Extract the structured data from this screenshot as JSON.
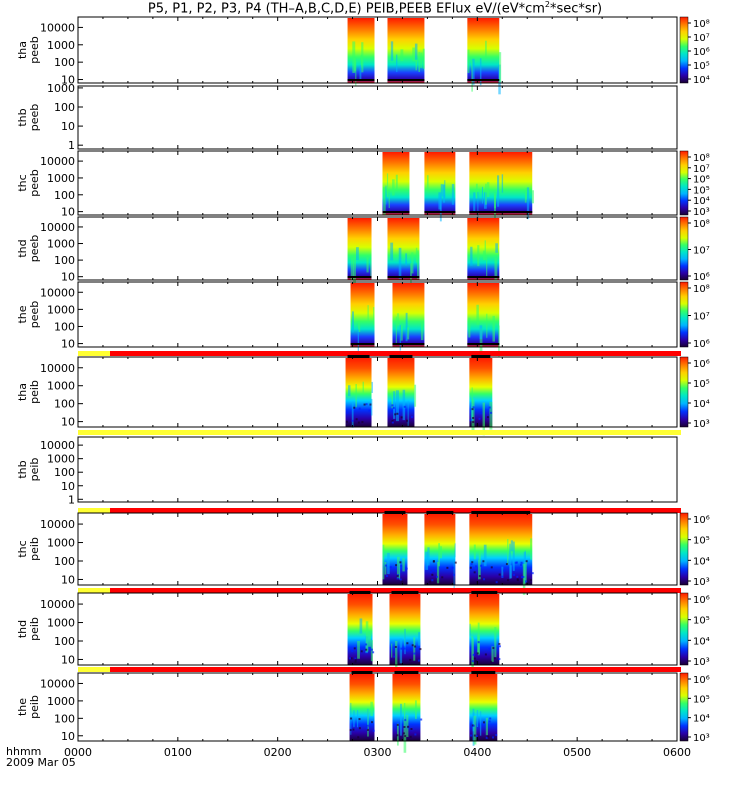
{
  "title": {
    "prefix": "P5, P1, P2, P3, P4 (TH–A,B,C,D,E) PEIB,PEEB EFlux eV/(eV*cm",
    "sup": "2",
    "suffix": "*sec*sr)"
  },
  "footer": {
    "hhmm": "hhmm",
    "date": "2009 Mar 05"
  },
  "chart_data": {
    "type": "heatmap",
    "x": {
      "unit": "hhmm",
      "ticks": [
        "0000",
        "0100",
        "0200",
        "0300",
        "0400",
        "0500",
        "0600"
      ],
      "range_hours": [
        0,
        6
      ]
    },
    "colormap": [
      "#1a0033",
      "#2a00a8",
      "#0033ff",
      "#00b4ff",
      "#00e6c8",
      "#33ff66",
      "#d8ff00",
      "#ffd000",
      "#ff7a00",
      "#ff1a00"
    ],
    "panels": [
      {
        "id": "tha-peeb",
        "label1": "tha",
        "label2": "peeb",
        "yticks": [
          "10000",
          "1000",
          "100",
          "10"
        ],
        "ylog": [
          0.8,
          4.6
        ],
        "ymin_exp": 1,
        "cbar_ticks": [
          "10⁸",
          "10⁷",
          "10⁶",
          "10⁵",
          "10⁴"
        ],
        "intervals": [
          [
            2.7,
            2.97
          ],
          [
            3.1,
            3.47
          ],
          [
            3.9,
            4.22
          ]
        ],
        "has_data": true,
        "mode_bar": null
      },
      {
        "id": "thb-peeb",
        "label1": "thb",
        "label2": "peeb",
        "yticks": [
          "1000",
          "100",
          "10",
          "1"
        ],
        "ylog": [
          -0.2,
          3.1
        ],
        "cbar_ticks": [],
        "intervals": [],
        "has_data": false,
        "mode_bar": null
      },
      {
        "id": "thc-peeb",
        "label1": "thc",
        "label2": "peeb",
        "yticks": [
          "10000",
          "1000",
          "100",
          "10"
        ],
        "ylog": [
          0.8,
          4.6
        ],
        "cbar_ticks": [
          "10⁸",
          "10⁷",
          "10⁶",
          "10⁵",
          "10⁴",
          "10³"
        ],
        "intervals": [
          [
            3.05,
            3.32
          ],
          [
            3.47,
            3.78
          ],
          [
            3.92,
            4.55
          ]
        ],
        "has_data": true,
        "mode_bar": null
      },
      {
        "id": "thd-peeb",
        "label1": "thd",
        "label2": "peeb",
        "yticks": [
          "10000",
          "1000",
          "100",
          "10"
        ],
        "ylog": [
          0.8,
          4.6
        ],
        "cbar_ticks": [
          "10⁸",
          "10⁷",
          "10⁶"
        ],
        "intervals": [
          [
            2.7,
            2.94
          ],
          [
            3.1,
            3.42
          ],
          [
            3.9,
            4.22
          ]
        ],
        "has_data": true,
        "mode_bar": null
      },
      {
        "id": "the-peeb",
        "label1": "the",
        "label2": "peeb",
        "yticks": [
          "10000",
          "1000",
          "100",
          "10"
        ],
        "ylog": [
          0.8,
          4.6
        ],
        "cbar_ticks": [
          "10⁸",
          "10⁷",
          "10⁶"
        ],
        "intervals": [
          [
            2.73,
            2.97
          ],
          [
            3.15,
            3.47
          ],
          [
            3.9,
            4.22
          ]
        ],
        "has_data": true,
        "mode_bar": null
      },
      {
        "id": "tha-peib",
        "label1": "tha",
        "label2": "peib",
        "yticks": [
          "10000",
          "1000",
          "100",
          "10"
        ],
        "ylog": [
          0.7,
          4.6
        ],
        "cbar_ticks": [
          "10⁶",
          "10⁵",
          "10⁴",
          "10³"
        ],
        "intervals": [
          [
            2.68,
            2.94
          ],
          [
            3.1,
            3.37
          ],
          [
            3.92,
            4.15
          ]
        ],
        "has_data": true,
        "mode_bar": "red"
      },
      {
        "id": "thb-peib",
        "label1": "thb",
        "label2": "peib",
        "yticks": [
          "10000",
          "1000",
          "100",
          "10",
          "1"
        ],
        "ylog": [
          -0.2,
          4.6
        ],
        "cbar_ticks": [],
        "intervals": [],
        "has_data": false,
        "mode_bar": "yellow"
      },
      {
        "id": "thc-peib",
        "label1": "thc",
        "label2": "peib",
        "yticks": [
          "10000",
          "1000",
          "100",
          "10"
        ],
        "ylog": [
          0.7,
          4.6
        ],
        "cbar_ticks": [
          "10⁶",
          "10⁵",
          "10⁴",
          "10³"
        ],
        "intervals": [
          [
            3.05,
            3.3
          ],
          [
            3.47,
            3.78
          ],
          [
            3.92,
            4.55
          ]
        ],
        "has_data": true,
        "mode_bar": "red"
      },
      {
        "id": "thd-peib",
        "label1": "thd",
        "label2": "peib",
        "yticks": [
          "10000",
          "1000",
          "100",
          "10"
        ],
        "ylog": [
          0.7,
          4.6
        ],
        "cbar_ticks": [
          "10⁶",
          "10⁵",
          "10⁴",
          "10³"
        ],
        "intervals": [
          [
            2.7,
            2.95
          ],
          [
            3.12,
            3.43
          ],
          [
            3.92,
            4.22
          ]
        ],
        "has_data": true,
        "mode_bar": "red"
      },
      {
        "id": "the-peib",
        "label1": "the",
        "label2": "peib",
        "yticks": [
          "10000",
          "1000",
          "100",
          "10"
        ],
        "ylog": [
          0.7,
          4.6
        ],
        "cbar_ticks": [
          "10⁶",
          "10⁵",
          "10⁴",
          "10³"
        ],
        "intervals": [
          [
            2.72,
            2.97
          ],
          [
            3.15,
            3.43
          ],
          [
            3.92,
            4.2
          ]
        ],
        "has_data": true,
        "mode_bar": "red"
      }
    ]
  }
}
